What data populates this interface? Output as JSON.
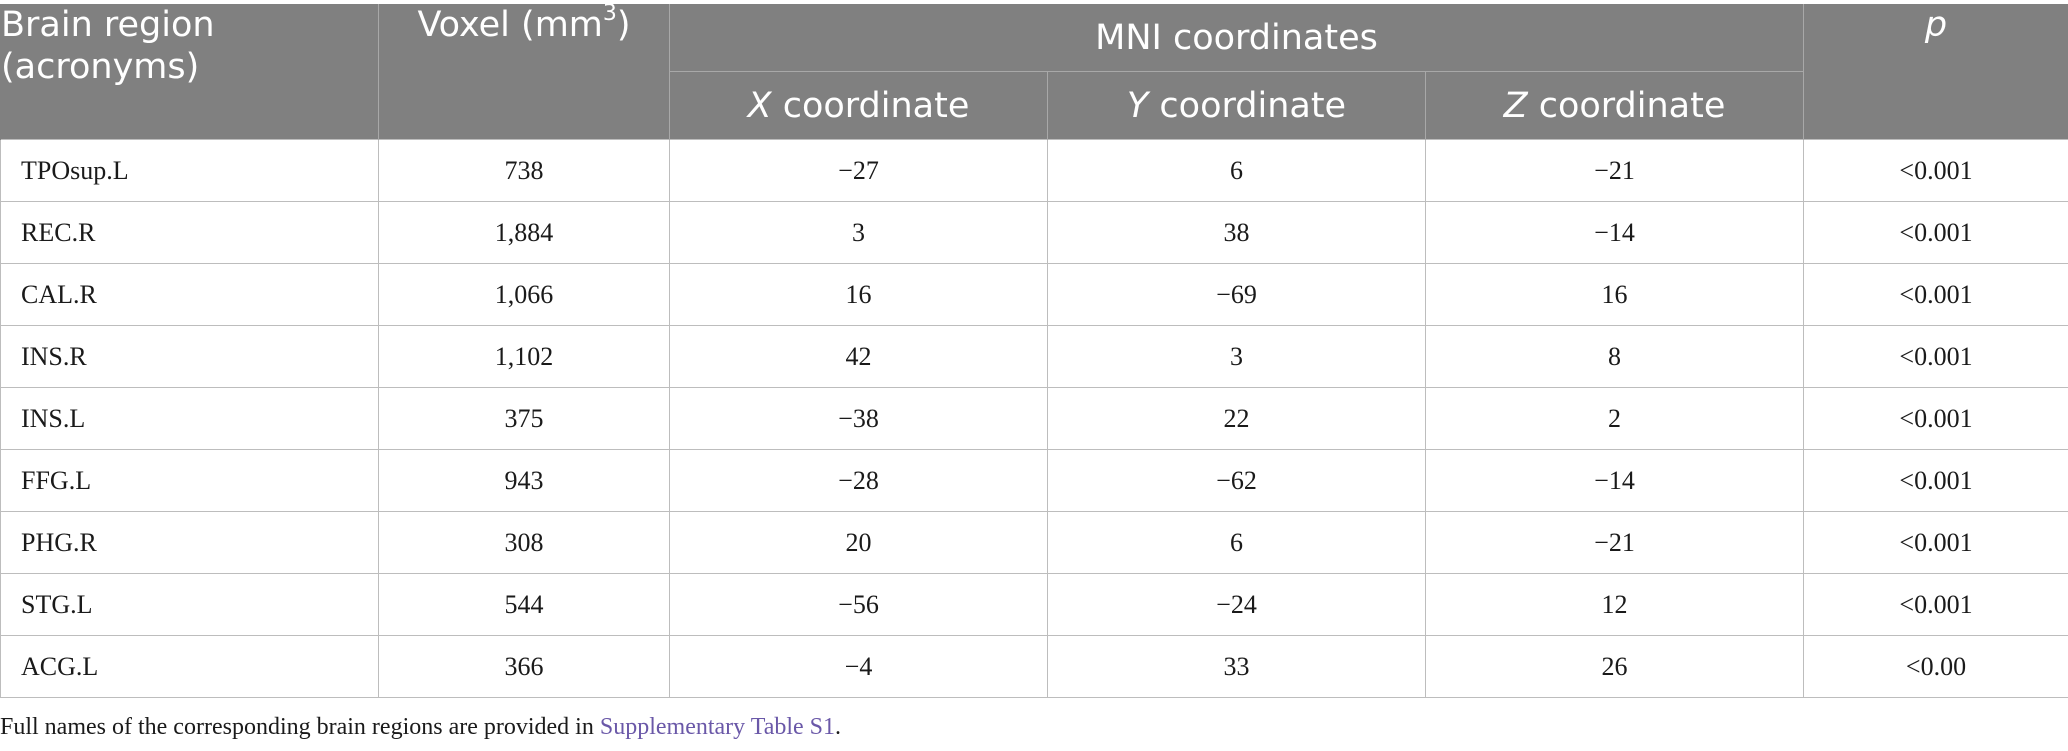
{
  "table": {
    "headers": {
      "region_line1": "Brain region",
      "region_line2": "(acronyms)",
      "voxel": "Voxel (mm",
      "voxel_sup": "3",
      "voxel_close": ")",
      "mni": "MNI coordinates",
      "x_letter": "X",
      "y_letter": "Y",
      "z_letter": "Z",
      "coordinate_word": " coordinate",
      "p": "p"
    },
    "rows": [
      {
        "region": "TPOsup.L",
        "voxel": "738",
        "x": "−27",
        "y": "6",
        "z": "−21",
        "p": "<0.001"
      },
      {
        "region": "REC.R",
        "voxel": "1,884",
        "x": "3",
        "y": "38",
        "z": "−14",
        "p": "<0.001"
      },
      {
        "region": "CAL.R",
        "voxel": "1,066",
        "x": "16",
        "y": "−69",
        "z": "16",
        "p": "<0.001"
      },
      {
        "region": "INS.R",
        "voxel": "1,102",
        "x": "42",
        "y": "3",
        "z": "8",
        "p": "<0.001"
      },
      {
        "region": "INS.L",
        "voxel": "375",
        "x": "−38",
        "y": "22",
        "z": "2",
        "p": "<0.001"
      },
      {
        "region": "FFG.L",
        "voxel": "943",
        "x": "−28",
        "y": "−62",
        "z": "−14",
        "p": "<0.001"
      },
      {
        "region": "PHG.R",
        "voxel": "308",
        "x": "20",
        "y": "6",
        "z": "−21",
        "p": "<0.001"
      },
      {
        "region": "STG.L",
        "voxel": "544",
        "x": "−56",
        "y": "−24",
        "z": "12",
        "p": "<0.001"
      },
      {
        "region": "ACG.L",
        "voxel": "366",
        "x": "−4",
        "y": "33",
        "z": "26",
        "p": "<0.00"
      }
    ]
  },
  "footnote": {
    "text": "Full names of the corresponding brain regions are provided in ",
    "link": "Supplementary Table S1",
    "end": "."
  },
  "colors": {
    "header_bg": "#808080",
    "header_text": "#ffffff",
    "link": "#6a58a8"
  }
}
